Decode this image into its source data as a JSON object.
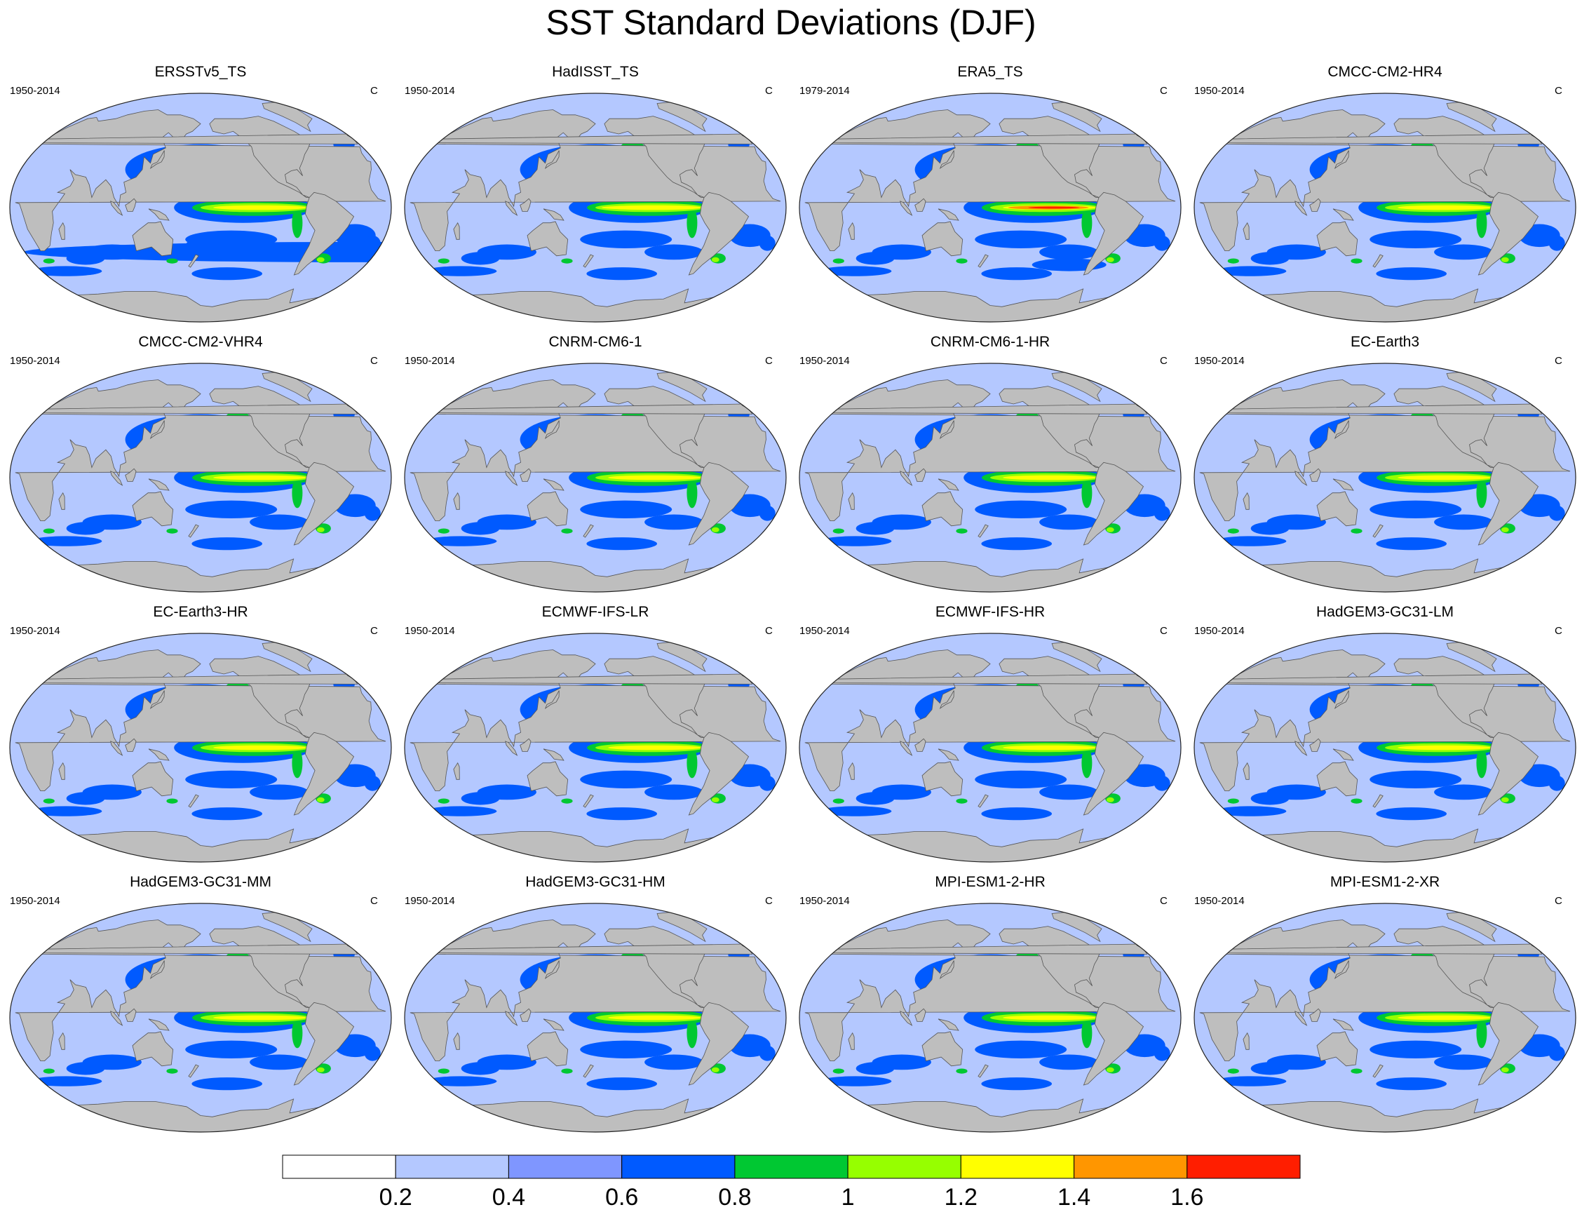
{
  "title": "SST Standard Deviations (DJF)",
  "panels": [
    {
      "title": "ERSSTv5_TS",
      "years": "1950-2014",
      "unit": "C"
    },
    {
      "title": "HadISST_TS",
      "years": "1950-2014",
      "unit": "C"
    },
    {
      "title": "ERA5_TS",
      "years": "1979-2014",
      "unit": "C"
    },
    {
      "title": "CMCC-CM2-HR4",
      "years": "1950-2014",
      "unit": "C"
    },
    {
      "title": "CMCC-CM2-VHR4",
      "years": "1950-2014",
      "unit": "C"
    },
    {
      "title": "CNRM-CM6-1",
      "years": "1950-2014",
      "unit": "C"
    },
    {
      "title": "CNRM-CM6-1-HR",
      "years": "1950-2014",
      "unit": "C"
    },
    {
      "title": "EC-Earth3",
      "years": "1950-2014",
      "unit": "C"
    },
    {
      "title": "EC-Earth3-HR",
      "years": "1950-2014",
      "unit": "C"
    },
    {
      "title": "ECMWF-IFS-LR",
      "years": "1950-2014",
      "unit": "C"
    },
    {
      "title": "ECMWF-IFS-HR",
      "years": "1950-2014",
      "unit": "C"
    },
    {
      "title": "HadGEM3-GC31-LM",
      "years": "1950-2014",
      "unit": "C"
    },
    {
      "title": "HadGEM3-GC31-MM",
      "years": "1950-2014",
      "unit": "C"
    },
    {
      "title": "HadGEM3-GC31-HM",
      "years": "1950-2014",
      "unit": "C"
    },
    {
      "title": "MPI-ESM1-2-HR",
      "years": "1950-2014",
      "unit": "C"
    },
    {
      "title": "MPI-ESM1-2-XR",
      "years": "1950-2014",
      "unit": "C"
    }
  ],
  "colorbar": {
    "labels": [
      "0.2",
      "0.4",
      "0.6",
      "0.8",
      "1",
      "1.2",
      "1.4",
      "1.6"
    ],
    "colors": [
      "#ffffff",
      "#b4c8ff",
      "#7f96ff",
      "#005aff",
      "#00c832",
      "#96ff00",
      "#ffff00",
      "#ff9600",
      "#ff1e00"
    ]
  },
  "colors": {
    "land": "#bebebe",
    "ocean_low": "#b4c8ff",
    "ocean_mid": "#7f96ff",
    "ocean_high": "#005aff"
  }
}
